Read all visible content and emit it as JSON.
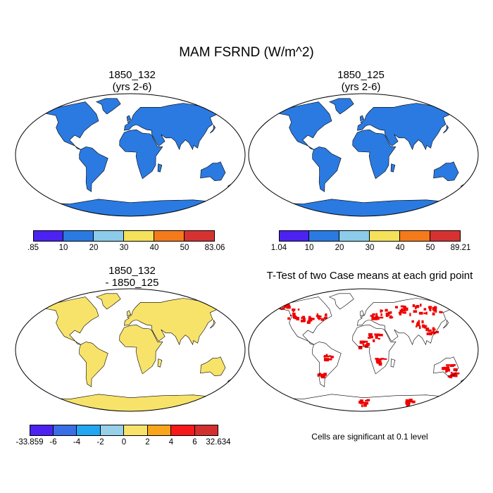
{
  "title": "MAM FSRND (W/m^2)",
  "panels": [
    {
      "title_line1": "1850_132",
      "title_line2": "(yrs 2-6)",
      "colorbar": {
        "colors": [
          "#4b22f2",
          "#2a7ae2",
          "#8ccbe9",
          "#f5e15a",
          "#f57a1a",
          "#d63232"
        ],
        "labels": [
          ".85",
          "10",
          "20",
          "30",
          "40",
          "50",
          "83.06"
        ]
      }
    },
    {
      "title_line1": "1850_125",
      "title_line2": "(yrs 2-6)",
      "colorbar": {
        "colors": [
          "#4b22f2",
          "#2a7ae2",
          "#8ccbe9",
          "#f5e15a",
          "#f57a1a",
          "#d63232"
        ],
        "labels": [
          "1.04",
          "10",
          "20",
          "30",
          "40",
          "50",
          "89.21"
        ]
      }
    },
    {
      "title_line1": "1850_132",
      "title_line2": "- 1850_125",
      "colorbar": {
        "colors": [
          "#4b22f2",
          "#3a6ee6",
          "#23a6f2",
          "#98cfe9",
          "#f8e36a",
          "#f8a51c",
          "#f81a1a",
          "#d23030"
        ],
        "labels": [
          "-33.859",
          "-6",
          "-4",
          "-2",
          "0",
          "2",
          "4",
          "6",
          "32.634"
        ]
      }
    },
    {
      "title": "T-Test of two Case means at each grid point",
      "note": "Cells are significant at 0.1 level"
    }
  ]
}
